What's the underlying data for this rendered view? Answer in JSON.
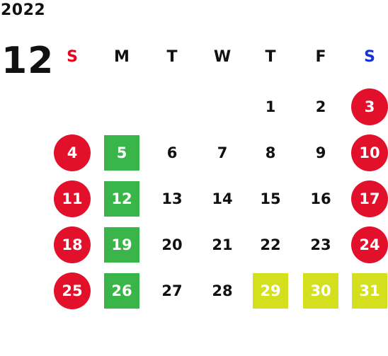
{
  "calendar": {
    "year": "2022",
    "month": "12",
    "weekdays": [
      "S",
      "M",
      "T",
      "W",
      "T",
      "F",
      "S"
    ],
    "colors": {
      "sunday_header": "#e8001c",
      "saturday_header": "#1432d9",
      "holiday_circle": "#e3102b",
      "monday_box": "#39b54a",
      "year_end_box": "#d4df1e"
    },
    "weeks": [
      [
        {
          "day": "",
          "type": "empty"
        },
        {
          "day": "",
          "type": "empty"
        },
        {
          "day": "",
          "type": "empty"
        },
        {
          "day": "",
          "type": "empty"
        },
        {
          "day": "1",
          "type": "normal"
        },
        {
          "day": "2",
          "type": "normal"
        },
        {
          "day": "3",
          "type": "holiday"
        }
      ],
      [
        {
          "day": "4",
          "type": "holiday"
        },
        {
          "day": "5",
          "type": "closed"
        },
        {
          "day": "6",
          "type": "normal"
        },
        {
          "day": "7",
          "type": "normal"
        },
        {
          "day": "8",
          "type": "normal"
        },
        {
          "day": "9",
          "type": "normal"
        },
        {
          "day": "10",
          "type": "holiday"
        }
      ],
      [
        {
          "day": "11",
          "type": "holiday"
        },
        {
          "day": "12",
          "type": "closed"
        },
        {
          "day": "13",
          "type": "normal"
        },
        {
          "day": "14",
          "type": "normal"
        },
        {
          "day": "15",
          "type": "normal"
        },
        {
          "day": "16",
          "type": "normal"
        },
        {
          "day": "17",
          "type": "holiday"
        }
      ],
      [
        {
          "day": "18",
          "type": "holiday"
        },
        {
          "day": "19",
          "type": "closed"
        },
        {
          "day": "20",
          "type": "normal"
        },
        {
          "day": "21",
          "type": "normal"
        },
        {
          "day": "22",
          "type": "normal"
        },
        {
          "day": "23",
          "type": "normal"
        },
        {
          "day": "24",
          "type": "holiday"
        }
      ],
      [
        {
          "day": "25",
          "type": "holiday"
        },
        {
          "day": "26",
          "type": "closed"
        },
        {
          "day": "27",
          "type": "normal"
        },
        {
          "day": "28",
          "type": "normal"
        },
        {
          "day": "29",
          "type": "special"
        },
        {
          "day": "30",
          "type": "special"
        },
        {
          "day": "31",
          "type": "special"
        }
      ]
    ]
  }
}
